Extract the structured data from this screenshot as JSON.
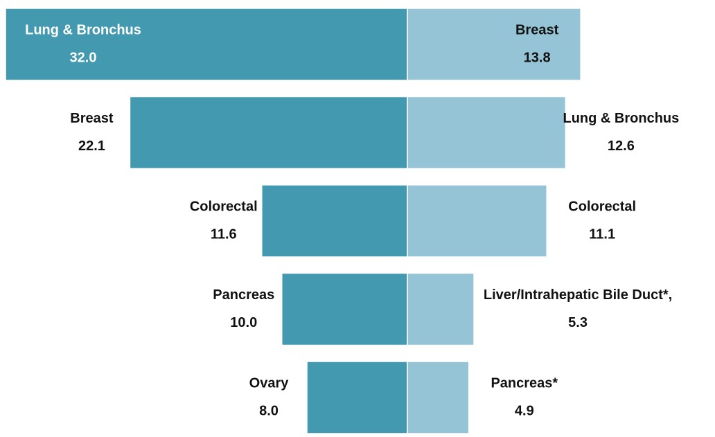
{
  "chart_data": {
    "type": "butterfly",
    "series": [
      {
        "color": "#4399b0",
        "categories": [
          "Lung & Bronchus",
          "Breast",
          "Colorectal",
          "Pancreas",
          "Ovary"
        ],
        "values": [
          32.0,
          22.1,
          11.6,
          10.0,
          8.0
        ],
        "value_labels": [
          "32.0",
          "22.1",
          "11.6",
          "10.0",
          "8.0"
        ]
      },
      {
        "color": "#94c4d5",
        "categories": [
          "Breast",
          "Lung & Bronchus",
          "Colorectal",
          "Liver/Intrahepatic Bile Duct*,",
          "Pancreas*"
        ],
        "values": [
          13.8,
          12.6,
          11.1,
          5.3,
          4.9
        ],
        "value_labels": [
          "13.8",
          "12.6",
          "11.1",
          "5.3",
          "4.9"
        ]
      }
    ]
  }
}
